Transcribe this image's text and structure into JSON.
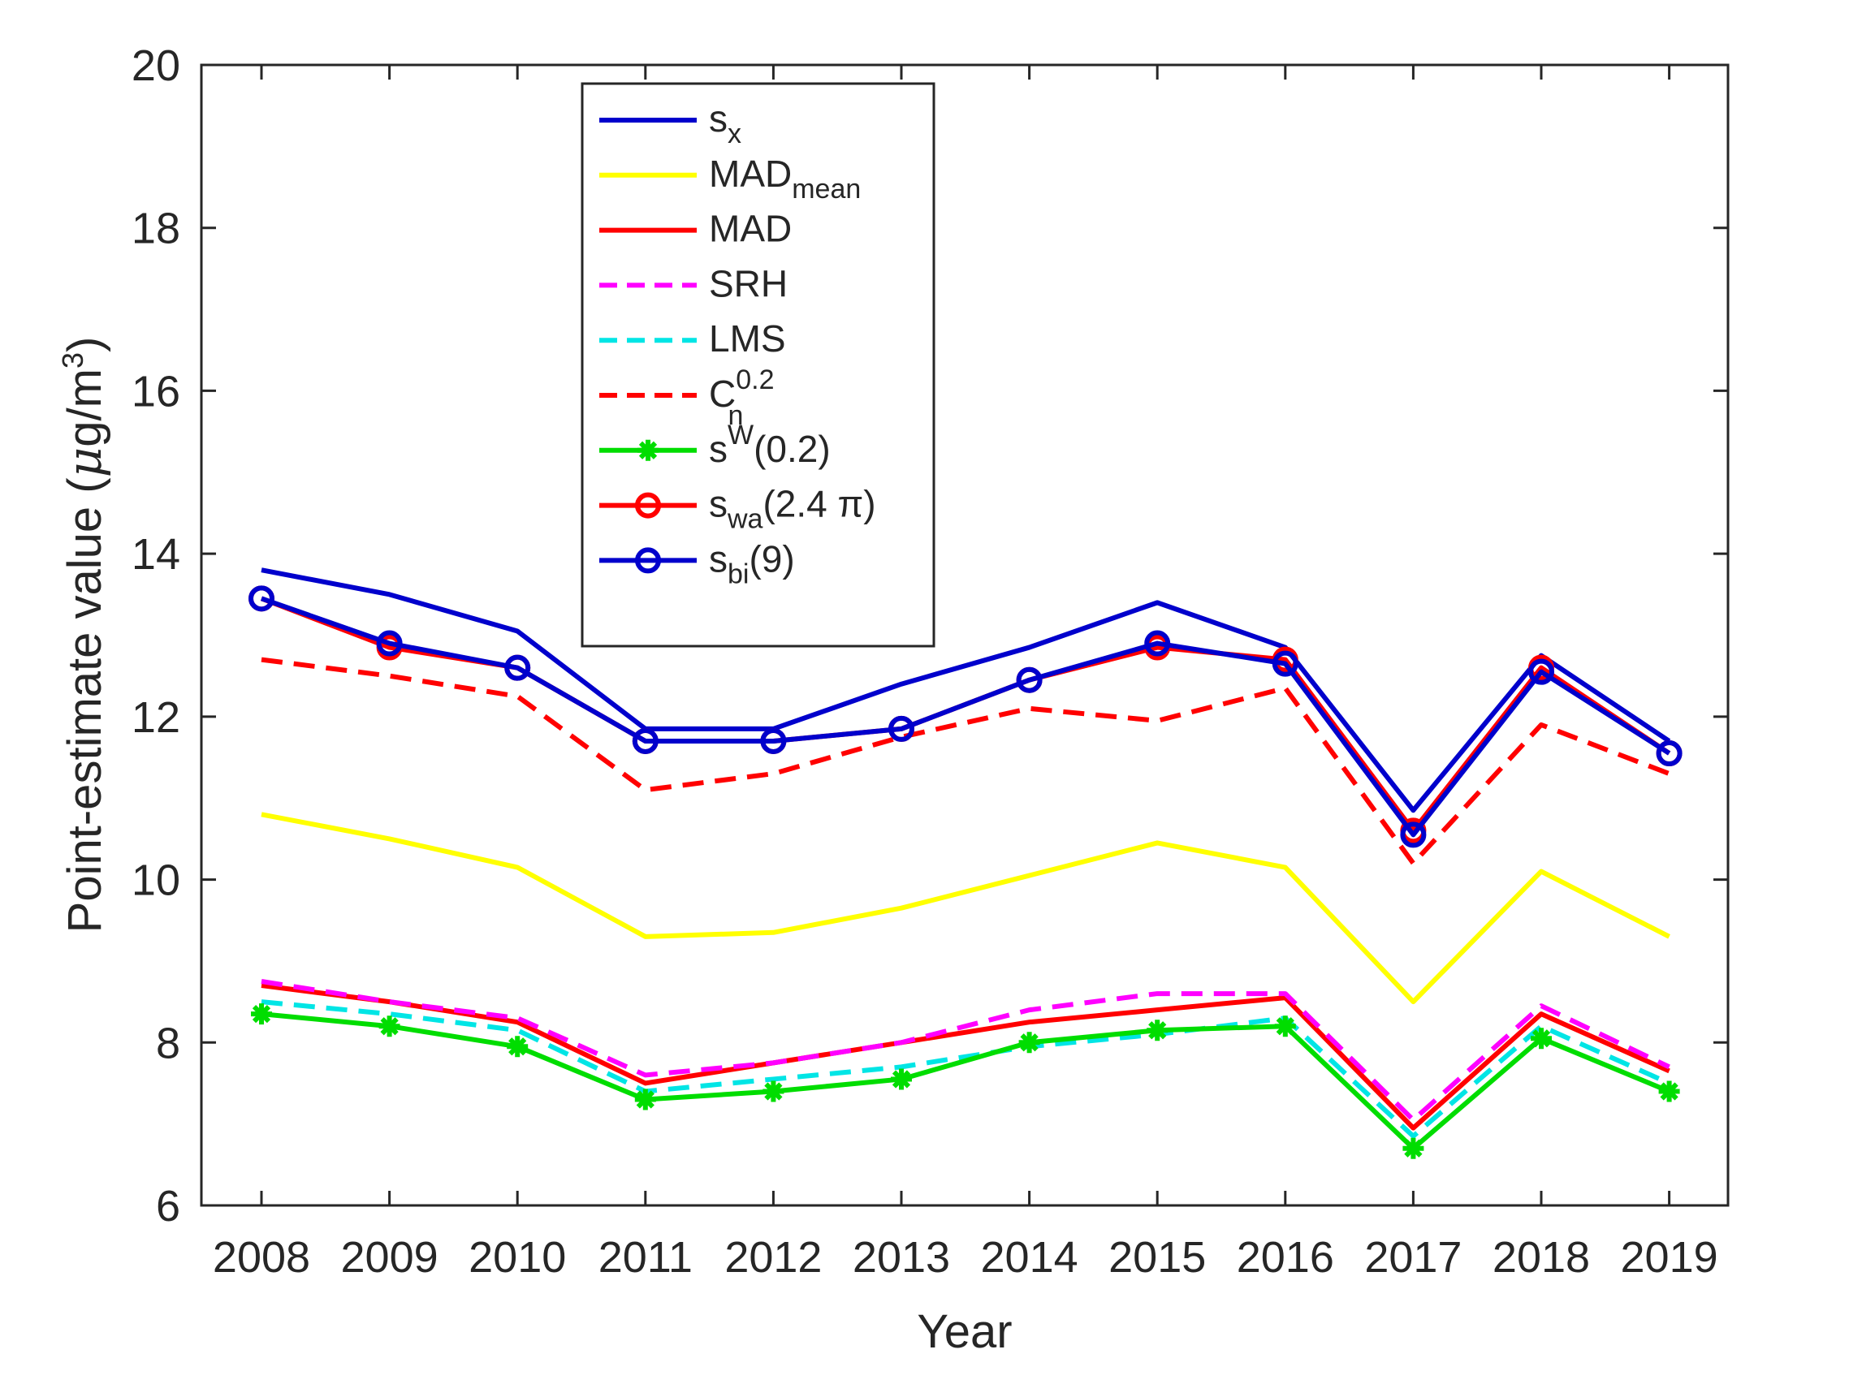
{
  "chart_data": {
    "type": "line",
    "title": "",
    "xlabel": "Year",
    "ylabel_parts": {
      "prefix": "Point-estimate value (",
      "mu": "μ",
      "unit": "g/m",
      "exponent": "3",
      "suffix": ")"
    },
    "categories": [
      "2008",
      "2009",
      "2010",
      "2011",
      "2012",
      "2013",
      "2014",
      "2015",
      "2016",
      "2017",
      "2018",
      "2019"
    ],
    "ylim": [
      6,
      20
    ],
    "yticks": [
      "6",
      "8",
      "10",
      "12",
      "14",
      "16",
      "18",
      "20"
    ],
    "grid": false,
    "legend_position": "top-center",
    "series": [
      {
        "name": "s_x",
        "label": {
          "main": "s",
          "sub": "x",
          "sup": "",
          "tail": ""
        },
        "color": "#0000cc",
        "dash": "solid",
        "marker": "none",
        "values": [
          13.8,
          13.5,
          13.05,
          11.85,
          11.85,
          12.4,
          12.85,
          13.4,
          12.85,
          10.85,
          12.75,
          11.7
        ]
      },
      {
        "name": "MAD_mean",
        "label": {
          "main": "MAD",
          "sub": "mean",
          "sup": "",
          "tail": ""
        },
        "color": "#ffff00",
        "dash": "solid",
        "marker": "none",
        "values": [
          10.8,
          10.5,
          10.15,
          9.3,
          9.35,
          9.65,
          10.05,
          10.45,
          10.15,
          8.5,
          10.1,
          9.3
        ]
      },
      {
        "name": "MAD",
        "label": {
          "main": "MAD",
          "sub": "",
          "sup": "",
          "tail": ""
        },
        "color": "#ff0000",
        "dash": "solid",
        "marker": "none",
        "values": [
          8.7,
          8.5,
          8.25,
          7.5,
          7.75,
          8.0,
          8.25,
          8.4,
          8.55,
          6.95,
          8.35,
          7.65
        ]
      },
      {
        "name": "SRH",
        "label": {
          "main": "SRH",
          "sub": "",
          "sup": "",
          "tail": ""
        },
        "color": "#ff00ff",
        "dash": "dashed",
        "marker": "none",
        "values": [
          8.75,
          8.5,
          8.3,
          7.6,
          7.75,
          8.0,
          8.4,
          8.6,
          8.6,
          7.05,
          8.45,
          7.7
        ]
      },
      {
        "name": "LMS",
        "label": {
          "main": "LMS",
          "sub": "",
          "sup": "",
          "tail": ""
        },
        "color": "#00e5e5",
        "dash": "dashed",
        "marker": "none",
        "values": [
          8.5,
          8.35,
          8.15,
          7.4,
          7.55,
          7.7,
          7.95,
          8.1,
          8.3,
          6.85,
          8.2,
          7.5
        ]
      },
      {
        "name": "C_n^0.2",
        "label": {
          "main": "C",
          "sub": "n",
          "sup": "0.2",
          "tail": ""
        },
        "color": "#ff0000",
        "dash": "dashed",
        "marker": "none",
        "values": [
          12.7,
          12.5,
          12.25,
          11.1,
          11.3,
          11.75,
          12.1,
          11.95,
          12.35,
          10.2,
          11.9,
          11.3
        ]
      },
      {
        "name": "s^W(0.2)",
        "label": {
          "main": "s",
          "sub": "",
          "sup": "W",
          "tail": "(0.2)"
        },
        "color": "#00dd00",
        "dash": "solid",
        "marker": "star",
        "values": [
          8.35,
          8.2,
          7.95,
          7.3,
          7.4,
          7.55,
          8.0,
          8.15,
          8.2,
          6.7,
          8.05,
          7.4
        ]
      },
      {
        "name": "s_wa(2.4 π)",
        "label": {
          "main": "s",
          "sub": "wa",
          "sup": "",
          "tail": "(2.4 π)"
        },
        "color": "#ff0000",
        "dash": "solid",
        "marker": "circle",
        "values": [
          13.45,
          12.85,
          12.6,
          11.7,
          11.7,
          11.85,
          12.45,
          12.85,
          12.7,
          10.6,
          12.6,
          11.55
        ]
      },
      {
        "name": "s_bi(9)",
        "label": {
          "main": "s",
          "sub": "bi",
          "sup": "",
          "tail": "(9)"
        },
        "color": "#0000cc",
        "dash": "solid",
        "marker": "circle",
        "values": [
          13.45,
          12.9,
          12.6,
          11.7,
          11.7,
          11.85,
          12.45,
          12.9,
          12.65,
          10.55,
          12.55,
          11.55
        ]
      }
    ]
  }
}
